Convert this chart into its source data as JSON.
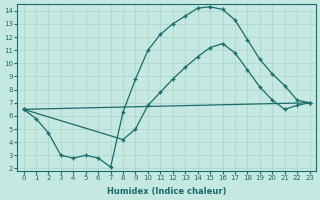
{
  "xlabel": "Humidex (Indice chaleur)",
  "ylabel": "",
  "xlim": [
    -0.5,
    23.5
  ],
  "ylim": [
    1.8,
    14.5
  ],
  "xticks": [
    0,
    1,
    2,
    3,
    4,
    5,
    6,
    7,
    8,
    9,
    10,
    11,
    12,
    13,
    14,
    15,
    16,
    17,
    18,
    19,
    20,
    21,
    22,
    23
  ],
  "yticks": [
    2,
    3,
    4,
    5,
    6,
    7,
    8,
    9,
    10,
    11,
    12,
    13,
    14
  ],
  "bg_color": "#c5e8e0",
  "line_color": "#1a6b6b",
  "grid_color": "#a8d4cc",
  "line1_x": [
    0,
    1,
    2,
    3,
    4,
    5,
    6,
    7,
    8,
    9,
    10,
    11,
    12,
    13,
    14,
    15,
    16,
    17,
    18,
    19,
    20,
    21,
    22,
    23
  ],
  "line1_y": [
    6.5,
    5.8,
    4.7,
    3.0,
    2.8,
    3.0,
    2.8,
    2.1,
    6.3,
    8.8,
    11.0,
    12.2,
    13.0,
    13.6,
    14.2,
    14.3,
    14.1,
    13.3,
    11.8,
    10.3,
    9.2,
    8.3,
    7.2,
    7.0
  ],
  "line2_x": [
    0,
    8,
    9,
    10,
    11,
    12,
    13,
    14,
    15,
    16,
    17,
    18,
    19,
    20,
    21,
    22,
    23
  ],
  "line2_y": [
    6.5,
    4.2,
    5.0,
    6.8,
    7.8,
    8.8,
    9.7,
    10.5,
    11.2,
    11.5,
    10.8,
    9.5,
    8.2,
    7.2,
    6.5,
    6.8,
    7.0
  ],
  "line3_x": [
    0,
    23
  ],
  "line3_y": [
    6.5,
    7.0
  ],
  "marker_size": 3.5,
  "linewidth": 0.9
}
